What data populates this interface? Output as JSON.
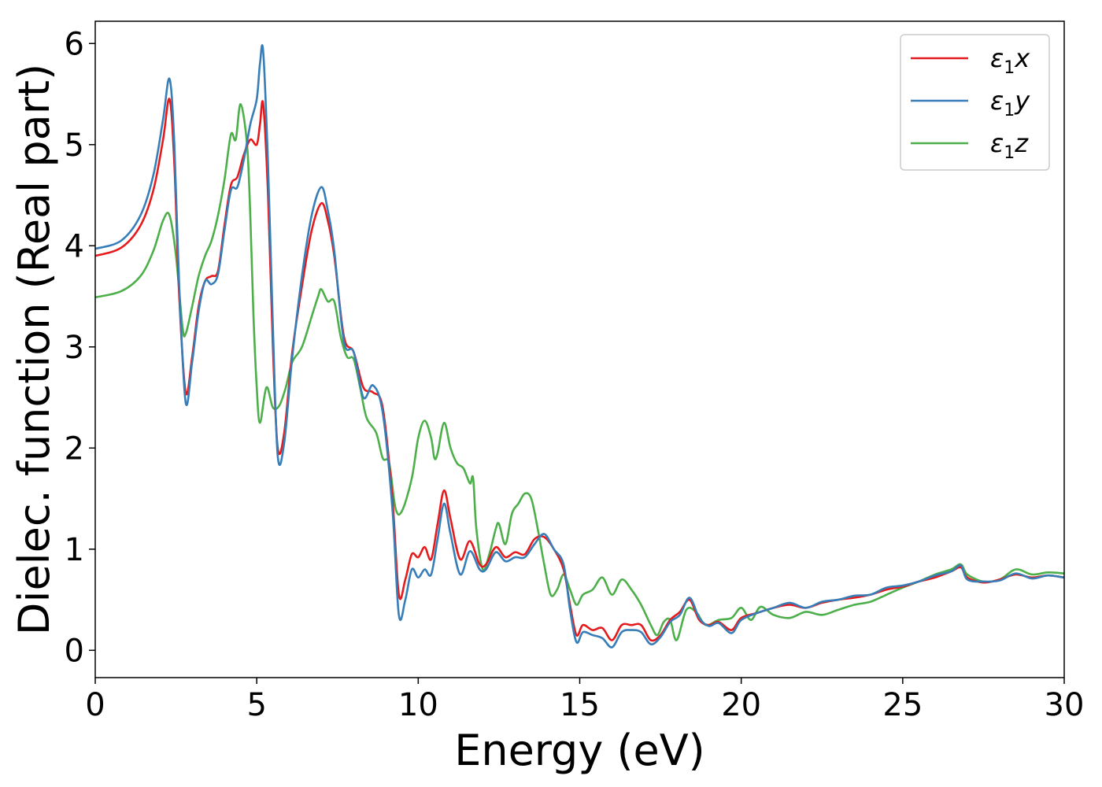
{
  "chart_data": {
    "type": "line",
    "title": "",
    "xlabel": "Energy (eV)",
    "ylabel": "Dielec. function (Real part)",
    "xlim": [
      0,
      30
    ],
    "ylim": [
      -0.27,
      6.22
    ],
    "xticks": [
      0,
      5,
      10,
      15,
      20,
      25,
      30
    ],
    "yticks": [
      0,
      1,
      2,
      3,
      4,
      5,
      6
    ],
    "grid": false,
    "legend_position": "top-right",
    "series": [
      {
        "name": "ε1x",
        "legend_main": "ε",
        "legend_sub": "1",
        "legend_tail": "x",
        "color": "#e41a1c",
        "points": [
          [
            0,
            3.9
          ],
          [
            0.8,
            3.98
          ],
          [
            1.4,
            4.2
          ],
          [
            1.8,
            4.55
          ],
          [
            2.1,
            5.05
          ],
          [
            2.3,
            5.45
          ],
          [
            2.45,
            4.8
          ],
          [
            2.6,
            3.5
          ],
          [
            2.8,
            2.55
          ],
          [
            3.0,
            2.9
          ],
          [
            3.2,
            3.4
          ],
          [
            3.4,
            3.65
          ],
          [
            3.6,
            3.7
          ],
          [
            3.8,
            3.75
          ],
          [
            4.0,
            4.2
          ],
          [
            4.2,
            4.6
          ],
          [
            4.4,
            4.68
          ],
          [
            4.6,
            4.9
          ],
          [
            4.8,
            5.05
          ],
          [
            5.0,
            5.0
          ],
          [
            5.1,
            5.2
          ],
          [
            5.2,
            5.4
          ],
          [
            5.35,
            4.5
          ],
          [
            5.5,
            3.0
          ],
          [
            5.65,
            2.0
          ],
          [
            5.85,
            2.15
          ],
          [
            6.1,
            2.95
          ],
          [
            6.4,
            3.6
          ],
          [
            6.7,
            4.15
          ],
          [
            7.0,
            4.42
          ],
          [
            7.2,
            4.25
          ],
          [
            7.4,
            3.9
          ],
          [
            7.7,
            3.1
          ],
          [
            8.0,
            2.95
          ],
          [
            8.3,
            2.6
          ],
          [
            8.6,
            2.55
          ],
          [
            8.9,
            2.4
          ],
          [
            9.2,
            1.5
          ],
          [
            9.4,
            0.55
          ],
          [
            9.6,
            0.7
          ],
          [
            9.8,
            0.95
          ],
          [
            10.0,
            0.92
          ],
          [
            10.2,
            1.02
          ],
          [
            10.4,
            0.9
          ],
          [
            10.6,
            1.25
          ],
          [
            10.8,
            1.58
          ],
          [
            11.0,
            1.3
          ],
          [
            11.3,
            0.9
          ],
          [
            11.6,
            1.08
          ],
          [
            11.9,
            0.85
          ],
          [
            12.1,
            0.85
          ],
          [
            12.4,
            1.02
          ],
          [
            12.7,
            0.92
          ],
          [
            13.0,
            0.97
          ],
          [
            13.3,
            0.95
          ],
          [
            13.6,
            1.1
          ],
          [
            13.9,
            1.12
          ],
          [
            14.2,
            1.0
          ],
          [
            14.5,
            0.8
          ],
          [
            14.7,
            0.45
          ],
          [
            14.9,
            0.15
          ],
          [
            15.1,
            0.25
          ],
          [
            15.4,
            0.2
          ],
          [
            15.7,
            0.22
          ],
          [
            16.0,
            0.1
          ],
          [
            16.3,
            0.25
          ],
          [
            16.6,
            0.25
          ],
          [
            16.9,
            0.25
          ],
          [
            17.2,
            0.1
          ],
          [
            17.5,
            0.15
          ],
          [
            17.8,
            0.3
          ],
          [
            18.1,
            0.38
          ],
          [
            18.4,
            0.5
          ],
          [
            18.7,
            0.3
          ],
          [
            19.0,
            0.25
          ],
          [
            19.3,
            0.28
          ],
          [
            19.7,
            0.2
          ],
          [
            20.0,
            0.32
          ],
          [
            20.5,
            0.37
          ],
          [
            21.0,
            0.42
          ],
          [
            21.5,
            0.45
          ],
          [
            22.0,
            0.42
          ],
          [
            22.5,
            0.47
          ],
          [
            23.0,
            0.5
          ],
          [
            23.5,
            0.52
          ],
          [
            24.0,
            0.55
          ],
          [
            24.5,
            0.6
          ],
          [
            25.0,
            0.63
          ],
          [
            25.5,
            0.68
          ],
          [
            26.0,
            0.72
          ],
          [
            26.5,
            0.78
          ],
          [
            26.8,
            0.82
          ],
          [
            27.0,
            0.72
          ],
          [
            27.5,
            0.67
          ],
          [
            28.0,
            0.7
          ],
          [
            28.5,
            0.75
          ],
          [
            29.0,
            0.72
          ],
          [
            29.5,
            0.74
          ],
          [
            30.0,
            0.72
          ]
        ]
      },
      {
        "name": "ε1y",
        "legend_main": "ε",
        "legend_sub": "1",
        "legend_tail": "y",
        "color": "#377eb8",
        "points": [
          [
            0,
            3.97
          ],
          [
            0.8,
            4.05
          ],
          [
            1.4,
            4.3
          ],
          [
            1.8,
            4.7
          ],
          [
            2.1,
            5.25
          ],
          [
            2.3,
            5.65
          ],
          [
            2.45,
            5.0
          ],
          [
            2.6,
            3.6
          ],
          [
            2.8,
            2.45
          ],
          [
            3.0,
            2.85
          ],
          [
            3.2,
            3.35
          ],
          [
            3.4,
            3.65
          ],
          [
            3.6,
            3.62
          ],
          [
            3.8,
            3.72
          ],
          [
            4.0,
            4.15
          ],
          [
            4.2,
            4.55
          ],
          [
            4.4,
            4.58
          ],
          [
            4.6,
            4.85
          ],
          [
            4.8,
            5.2
          ],
          [
            5.0,
            5.45
          ],
          [
            5.1,
            5.8
          ],
          [
            5.2,
            5.92
          ],
          [
            5.35,
            4.8
          ],
          [
            5.5,
            3.2
          ],
          [
            5.65,
            1.92
          ],
          [
            5.85,
            2.05
          ],
          [
            6.1,
            2.9
          ],
          [
            6.4,
            3.7
          ],
          [
            6.7,
            4.3
          ],
          [
            7.0,
            4.58
          ],
          [
            7.2,
            4.35
          ],
          [
            7.4,
            3.95
          ],
          [
            7.7,
            3.05
          ],
          [
            8.0,
            2.95
          ],
          [
            8.3,
            2.5
          ],
          [
            8.6,
            2.62
          ],
          [
            8.9,
            2.35
          ],
          [
            9.2,
            1.4
          ],
          [
            9.4,
            0.35
          ],
          [
            9.6,
            0.5
          ],
          [
            9.8,
            0.8
          ],
          [
            10.0,
            0.72
          ],
          [
            10.2,
            0.8
          ],
          [
            10.4,
            0.75
          ],
          [
            10.6,
            1.1
          ],
          [
            10.8,
            1.45
          ],
          [
            11.0,
            1.15
          ],
          [
            11.3,
            0.75
          ],
          [
            11.6,
            0.98
          ],
          [
            11.9,
            0.8
          ],
          [
            12.1,
            0.8
          ],
          [
            12.4,
            0.97
          ],
          [
            12.7,
            0.88
          ],
          [
            13.0,
            0.92
          ],
          [
            13.3,
            0.92
          ],
          [
            13.6,
            1.05
          ],
          [
            13.9,
            1.15
          ],
          [
            14.2,
            1.0
          ],
          [
            14.5,
            0.85
          ],
          [
            14.7,
            0.4
          ],
          [
            14.9,
            0.08
          ],
          [
            15.1,
            0.18
          ],
          [
            15.4,
            0.15
          ],
          [
            15.7,
            0.12
          ],
          [
            16.0,
            0.03
          ],
          [
            16.3,
            0.18
          ],
          [
            16.6,
            0.2
          ],
          [
            16.9,
            0.18
          ],
          [
            17.2,
            0.06
          ],
          [
            17.5,
            0.13
          ],
          [
            17.8,
            0.28
          ],
          [
            18.1,
            0.35
          ],
          [
            18.4,
            0.52
          ],
          [
            18.7,
            0.32
          ],
          [
            19.0,
            0.24
          ],
          [
            19.3,
            0.27
          ],
          [
            19.7,
            0.17
          ],
          [
            20.0,
            0.3
          ],
          [
            20.5,
            0.37
          ],
          [
            21.0,
            0.42
          ],
          [
            21.5,
            0.47
          ],
          [
            22.0,
            0.42
          ],
          [
            22.5,
            0.48
          ],
          [
            23.0,
            0.5
          ],
          [
            23.5,
            0.54
          ],
          [
            24.0,
            0.55
          ],
          [
            24.5,
            0.62
          ],
          [
            25.0,
            0.64
          ],
          [
            25.5,
            0.68
          ],
          [
            26.0,
            0.74
          ],
          [
            26.5,
            0.78
          ],
          [
            26.8,
            0.84
          ],
          [
            27.0,
            0.7
          ],
          [
            27.5,
            0.68
          ],
          [
            28.0,
            0.69
          ],
          [
            28.5,
            0.76
          ],
          [
            29.0,
            0.71
          ],
          [
            29.5,
            0.74
          ],
          [
            30.0,
            0.72
          ]
        ]
      },
      {
        "name": "ε1z",
        "legend_main": "ε",
        "legend_sub": "1",
        "legend_tail": "z",
        "color": "#4daf4a",
        "points": [
          [
            0,
            3.49
          ],
          [
            0.8,
            3.55
          ],
          [
            1.4,
            3.7
          ],
          [
            1.8,
            3.95
          ],
          [
            2.1,
            4.25
          ],
          [
            2.3,
            4.3
          ],
          [
            2.5,
            3.9
          ],
          [
            2.7,
            3.2
          ],
          [
            2.8,
            3.13
          ],
          [
            3.0,
            3.4
          ],
          [
            3.2,
            3.7
          ],
          [
            3.4,
            3.9
          ],
          [
            3.6,
            4.05
          ],
          [
            3.8,
            4.3
          ],
          [
            4.0,
            4.65
          ],
          [
            4.2,
            5.1
          ],
          [
            4.35,
            5.05
          ],
          [
            4.5,
            5.4
          ],
          [
            4.7,
            5.0
          ],
          [
            4.8,
            4.3
          ],
          [
            4.9,
            3.3
          ],
          [
            5.0,
            2.6
          ],
          [
            5.1,
            2.25
          ],
          [
            5.3,
            2.6
          ],
          [
            5.5,
            2.4
          ],
          [
            5.7,
            2.42
          ],
          [
            5.9,
            2.6
          ],
          [
            6.1,
            2.85
          ],
          [
            6.4,
            3.0
          ],
          [
            6.7,
            3.3
          ],
          [
            6.9,
            3.5
          ],
          [
            7.0,
            3.57
          ],
          [
            7.2,
            3.45
          ],
          [
            7.4,
            3.45
          ],
          [
            7.6,
            3.1
          ],
          [
            7.8,
            2.9
          ],
          [
            8.0,
            2.88
          ],
          [
            8.2,
            2.6
          ],
          [
            8.4,
            2.3
          ],
          [
            8.7,
            2.15
          ],
          [
            8.9,
            1.9
          ],
          [
            9.1,
            1.85
          ],
          [
            9.3,
            1.4
          ],
          [
            9.5,
            1.38
          ],
          [
            9.8,
            1.7
          ],
          [
            10.0,
            2.1
          ],
          [
            10.2,
            2.27
          ],
          [
            10.4,
            2.1
          ],
          [
            10.5,
            1.9
          ],
          [
            10.6,
            1.95
          ],
          [
            10.8,
            2.25
          ],
          [
            11.0,
            2.0
          ],
          [
            11.2,
            1.85
          ],
          [
            11.4,
            1.8
          ],
          [
            11.6,
            1.65
          ],
          [
            11.7,
            1.7
          ],
          [
            11.8,
            1.2
          ],
          [
            12.0,
            0.8
          ],
          [
            12.2,
            0.95
          ],
          [
            12.4,
            1.2
          ],
          [
            12.5,
            1.25
          ],
          [
            12.7,
            1.05
          ],
          [
            12.9,
            1.35
          ],
          [
            13.1,
            1.45
          ],
          [
            13.3,
            1.55
          ],
          [
            13.5,
            1.5
          ],
          [
            13.7,
            1.2
          ],
          [
            13.9,
            0.85
          ],
          [
            14.1,
            0.55
          ],
          [
            14.3,
            0.6
          ],
          [
            14.5,
            0.75
          ],
          [
            14.7,
            0.6
          ],
          [
            14.9,
            0.45
          ],
          [
            15.1,
            0.55
          ],
          [
            15.4,
            0.6
          ],
          [
            15.7,
            0.72
          ],
          [
            16.0,
            0.55
          ],
          [
            16.3,
            0.7
          ],
          [
            16.6,
            0.6
          ],
          [
            16.9,
            0.45
          ],
          [
            17.2,
            0.25
          ],
          [
            17.4,
            0.15
          ],
          [
            17.6,
            0.28
          ],
          [
            17.8,
            0.3
          ],
          [
            18.0,
            0.1
          ],
          [
            18.3,
            0.4
          ],
          [
            18.6,
            0.38
          ],
          [
            18.9,
            0.25
          ],
          [
            19.3,
            0.3
          ],
          [
            19.7,
            0.32
          ],
          [
            20.0,
            0.42
          ],
          [
            20.3,
            0.3
          ],
          [
            20.6,
            0.43
          ],
          [
            21.0,
            0.35
          ],
          [
            21.5,
            0.32
          ],
          [
            22.0,
            0.38
          ],
          [
            22.5,
            0.35
          ],
          [
            23.0,
            0.4
          ],
          [
            23.5,
            0.45
          ],
          [
            24.0,
            0.48
          ],
          [
            24.5,
            0.55
          ],
          [
            25.0,
            0.62
          ],
          [
            25.5,
            0.68
          ],
          [
            26.0,
            0.75
          ],
          [
            26.5,
            0.8
          ],
          [
            26.8,
            0.85
          ],
          [
            27.0,
            0.75
          ],
          [
            27.5,
            0.68
          ],
          [
            28.0,
            0.7
          ],
          [
            28.5,
            0.8
          ],
          [
            29.0,
            0.75
          ],
          [
            29.5,
            0.77
          ],
          [
            30.0,
            0.76
          ]
        ]
      }
    ]
  }
}
